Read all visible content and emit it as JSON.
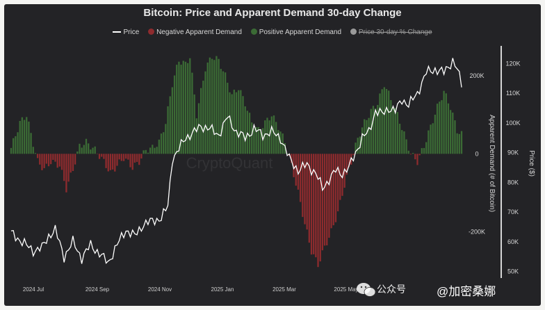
{
  "chart_data": {
    "type": "bar",
    "title": "Bitcoin: Price and Apparent Demand 30-day Change",
    "legend": {
      "placement": "top-center",
      "entries": [
        {
          "label": "Price",
          "color": "#ffffff",
          "kind": "line",
          "active": true
        },
        {
          "label": "Negative Apparent Demand",
          "color": "#8e2b2e",
          "kind": "dot",
          "active": true
        },
        {
          "label": "Positive Apparent Demand",
          "color": "#3b6b35",
          "kind": "dot",
          "active": true
        },
        {
          "label": "Price 30-day % Change",
          "color": "#9a9a9a",
          "kind": "dot",
          "active": false
        }
      ]
    },
    "x_tick_labels": [
      "2024 Jul",
      "2024 Sep",
      "2024 Nov",
      "2025 Jan",
      "2025 Mar",
      "2025 May"
    ],
    "y_left": {
      "label": "Apparent Demand (# of Bitcoin)",
      "ticks": [
        "200K",
        "0",
        "-200K"
      ],
      "range": [
        -310000,
        270000
      ]
    },
    "y_right": {
      "label": "Price ($)",
      "ticks": [
        "120K",
        "110K",
        "100K",
        "90K",
        "80K",
        "70K",
        "60K",
        "50K"
      ],
      "range": [
        49000,
        125000
      ]
    },
    "grid": false,
    "watermark": "CryptoQuant",
    "demand_anchors": [
      [
        0,
        15000
      ],
      [
        4,
        80000
      ],
      [
        7,
        100000
      ],
      [
        9,
        50000
      ],
      [
        12,
        -20000
      ],
      [
        15,
        -40000
      ],
      [
        18,
        -20000
      ],
      [
        22,
        -30000
      ],
      [
        25,
        -90000
      ],
      [
        28,
        -40000
      ],
      [
        31,
        20000
      ],
      [
        34,
        30000
      ],
      [
        38,
        10000
      ],
      [
        42,
        -20000
      ],
      [
        45,
        -50000
      ],
      [
        48,
        -30000
      ],
      [
        51,
        -10000
      ],
      [
        55,
        -35000
      ],
      [
        58,
        -20000
      ],
      [
        61,
        10000
      ],
      [
        64,
        15000
      ],
      [
        67,
        30000
      ],
      [
        70,
        80000
      ],
      [
        73,
        180000
      ],
      [
        76,
        240000
      ],
      [
        79,
        230000
      ],
      [
        81,
        250000
      ],
      [
        84,
        100000
      ],
      [
        86,
        160000
      ],
      [
        88,
        220000
      ],
      [
        91,
        250000
      ],
      [
        94,
        240000
      ],
      [
        97,
        200000
      ],
      [
        100,
        150000
      ],
      [
        103,
        170000
      ],
      [
        106,
        130000
      ],
      [
        109,
        80000
      ],
      [
        112,
        60000
      ],
      [
        115,
        80000
      ],
      [
        118,
        100000
      ],
      [
        121,
        70000
      ],
      [
        124,
        30000
      ],
      [
        127,
        -30000
      ],
      [
        130,
        -100000
      ],
      [
        133,
        -180000
      ],
      [
        136,
        -250000
      ],
      [
        139,
        -285000
      ],
      [
        142,
        -240000
      ],
      [
        145,
        -200000
      ],
      [
        148,
        -150000
      ],
      [
        151,
        -80000
      ],
      [
        154,
        -20000
      ],
      [
        157,
        40000
      ],
      [
        160,
        80000
      ],
      [
        163,
        110000
      ],
      [
        166,
        130000
      ],
      [
        169,
        180000
      ],
      [
        172,
        140000
      ],
      [
        175,
        100000
      ],
      [
        178,
        50000
      ],
      [
        181,
        0
      ],
      [
        184,
        -20000
      ],
      [
        187,
        20000
      ],
      [
        190,
        70000
      ],
      [
        193,
        120000
      ],
      [
        196,
        160000
      ],
      [
        199,
        120000
      ],
      [
        202,
        60000
      ],
      [
        204,
        50000
      ]
    ],
    "price_anchors": [
      [
        0,
        63000
      ],
      [
        5,
        60000
      ],
      [
        10,
        57000
      ],
      [
        14,
        58000
      ],
      [
        17,
        62000
      ],
      [
        20,
        64000
      ],
      [
        24,
        55000
      ],
      [
        28,
        60000
      ],
      [
        32,
        54500
      ],
      [
        36,
        59000
      ],
      [
        40,
        56000
      ],
      [
        44,
        53000
      ],
      [
        48,
        59000
      ],
      [
        52,
        64000
      ],
      [
        56,
        62000
      ],
      [
        60,
        66000
      ],
      [
        64,
        67000
      ],
      [
        68,
        68000
      ],
      [
        71,
        72000
      ],
      [
        73,
        88000
      ],
      [
        75,
        90000
      ],
      [
        79,
        95000
      ],
      [
        83,
        97000
      ],
      [
        86,
        99000
      ],
      [
        90,
        98000
      ],
      [
        94,
        96000
      ],
      [
        98,
        102000
      ],
      [
        102,
        97000
      ],
      [
        106,
        95000
      ],
      [
        110,
        98000
      ],
      [
        114,
        96000
      ],
      [
        118,
        97000
      ],
      [
        122,
        95000
      ],
      [
        126,
        88000
      ],
      [
        130,
        84000
      ],
      [
        134,
        86000
      ],
      [
        138,
        83000
      ],
      [
        141,
        78000
      ],
      [
        144,
        81000
      ],
      [
        147,
        84000
      ],
      [
        150,
        83000
      ],
      [
        153,
        85000
      ],
      [
        156,
        90000
      ],
      [
        159,
        95000
      ],
      [
        162,
        97000
      ],
      [
        165,
        104000
      ],
      [
        168,
        103000
      ],
      [
        171,
        105000
      ],
      [
        174,
        104000
      ],
      [
        177,
        108000
      ],
      [
        180,
        106000
      ],
      [
        184,
        110000
      ],
      [
        188,
        117000
      ],
      [
        192,
        118000
      ],
      [
        196,
        117000
      ],
      [
        200,
        121000
      ],
      [
        202,
        118000
      ],
      [
        204,
        113000
      ]
    ]
  },
  "overlay": {
    "channel_icon": "wechat-icon",
    "channel_label": "公众号",
    "account_handle": "@加密桑娜"
  }
}
